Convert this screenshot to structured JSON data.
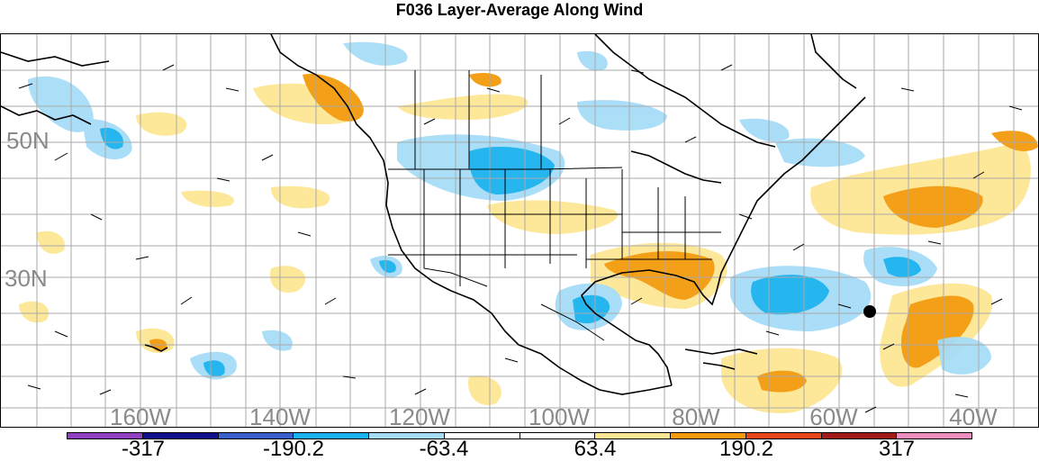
{
  "title": "F036 Layer-Average Along Wind",
  "map": {
    "lat_labels": [
      "50N",
      "30N"
    ],
    "lon_labels": [
      "160W",
      "140W",
      "120W",
      "100W",
      "80W",
      "60W",
      "40W"
    ],
    "grid_color": "#a9a9a9",
    "station_marker": "black-dot"
  },
  "colorbar": {
    "colors": [
      "#8f3fbf",
      "#10108f",
      "#3a5fcd",
      "#1ab2ef",
      "#a6dcf7",
      "#ffffff",
      "#ffffff",
      "#fde694",
      "#f49a0c",
      "#e8451a",
      "#a31a1a",
      "#ef8fbf"
    ],
    "tick_labels": [
      "-317",
      "-190.2",
      "-63.4",
      "63.4",
      "190.2",
      "317"
    ]
  },
  "legend_levels": [
    -317,
    -190.2,
    -63.4,
    63.4,
    190.2,
    317
  ]
}
